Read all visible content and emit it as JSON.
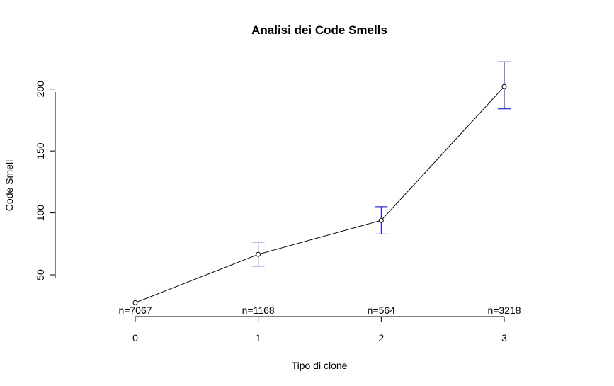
{
  "chart_data": {
    "type": "line",
    "title": "Analisi dei Code Smells",
    "xlabel": "Tipo di clone",
    "ylabel": "Code Smell",
    "x": [
      0,
      1,
      2,
      3
    ],
    "xticks": [
      "0",
      "1",
      "2",
      "3"
    ],
    "yticks": [
      "50",
      "100",
      "150",
      "200"
    ],
    "ylim": [
      22,
      225
    ],
    "series": [
      {
        "values": [
          27.5,
          66.5,
          94,
          202
        ],
        "err_low": [
          27.5,
          57,
          83,
          184
        ],
        "err_high": [
          27.5,
          76.5,
          105,
          222
        ]
      }
    ],
    "n_labels": [
      "n=7067",
      "n=1168",
      "n=564",
      "n=3218"
    ],
    "colors": {
      "line": "#000000",
      "error_bars": "#0000cc"
    },
    "grid": false
  }
}
